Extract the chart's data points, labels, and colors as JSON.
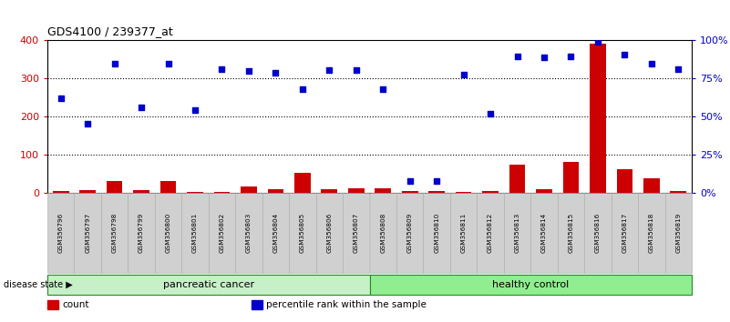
{
  "title": "GDS4100 / 239377_at",
  "samples": [
    "GSM356796",
    "GSM356797",
    "GSM356798",
    "GSM356799",
    "GSM356800",
    "GSM356801",
    "GSM356802",
    "GSM356803",
    "GSM356804",
    "GSM356805",
    "GSM356806",
    "GSM356807",
    "GSM356808",
    "GSM356809",
    "GSM356810",
    "GSM356811",
    "GSM356812",
    "GSM356813",
    "GSM356814",
    "GSM356815",
    "GSM356816",
    "GSM356817",
    "GSM356818",
    "GSM356819"
  ],
  "count_values": [
    5,
    7,
    30,
    7,
    32,
    2,
    3,
    17,
    10,
    52,
    10,
    13,
    13,
    5,
    5,
    3,
    5,
    75,
    10,
    80,
    390,
    62,
    38,
    5
  ],
  "percentile_values": [
    248,
    180,
    337,
    225,
    337,
    217,
    325,
    320,
    315,
    272,
    322,
    322,
    272,
    30,
    30,
    310,
    207,
    358,
    355,
    358,
    396,
    362,
    337,
    325
  ],
  "disease_groups": [
    {
      "label": "pancreatic cancer",
      "start": 0,
      "end": 11,
      "color": "#c8f0c8"
    },
    {
      "label": "healthy control",
      "start": 12,
      "end": 23,
      "color": "#90ee90"
    }
  ],
  "bar_color": "#cc0000",
  "dot_color": "#0000cc",
  "left_axis_color": "#cc0000",
  "right_axis_color": "#0000cc",
  "ylim_left": [
    0,
    400
  ],
  "ylim_right": [
    0,
    100
  ],
  "left_yticks": [
    0,
    100,
    200,
    300,
    400
  ],
  "right_yticks": [
    0,
    25,
    50,
    75,
    100
  ],
  "right_yticklabels": [
    "0%",
    "25%",
    "50%",
    "75%",
    "100%"
  ],
  "bg_color": "#ffffff",
  "disease_state_label": "disease state",
  "legend_items": [
    {
      "color": "#cc0000",
      "label": "count"
    },
    {
      "color": "#0000cc",
      "label": "percentile rank within the sample"
    }
  ],
  "bar_width": 0.6,
  "sample_box_color": "#d0d0d0",
  "sample_box_edge": "#aaaaaa",
  "ds_border_color": "#228B22",
  "grid_dotted_color": "#000000"
}
